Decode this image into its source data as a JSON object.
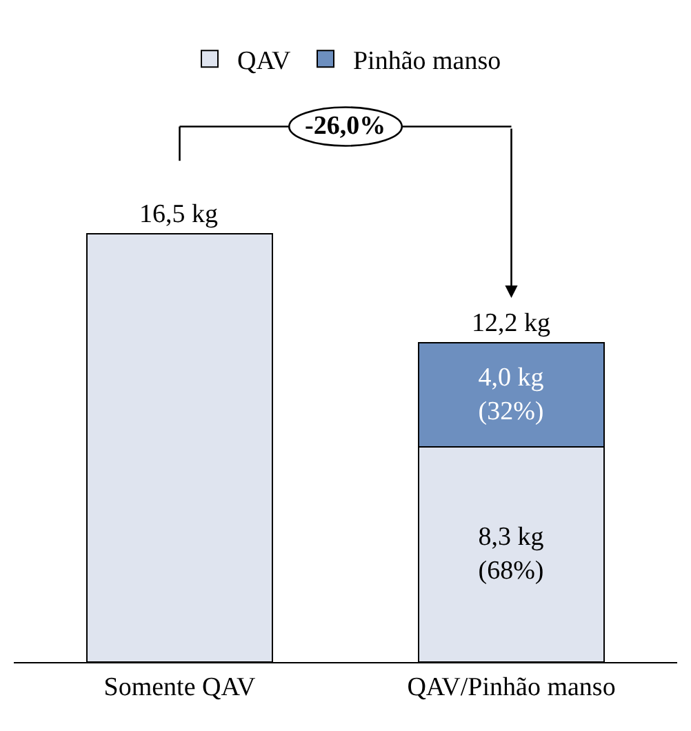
{
  "chart_data": {
    "type": "bar",
    "stacked": true,
    "categories": [
      "Somente QAV",
      "QAV/Pinhão manso"
    ],
    "series": [
      {
        "name": "QAV",
        "color": "#dfe4ef",
        "values": [
          16.5,
          8.3
        ],
        "value_labels": [
          null,
          "8,3 kg\n(68%)"
        ]
      },
      {
        "name": "Pinhão manso",
        "color": "#6d8fbf",
        "values": [
          null,
          4.0
        ],
        "value_labels": [
          null,
          "4,0 kg\n(32%)"
        ]
      }
    ],
    "totals": [
      "16,5 kg",
      "12,2 kg"
    ],
    "annotations": [
      "-26,0%"
    ],
    "legend": "top"
  }
}
